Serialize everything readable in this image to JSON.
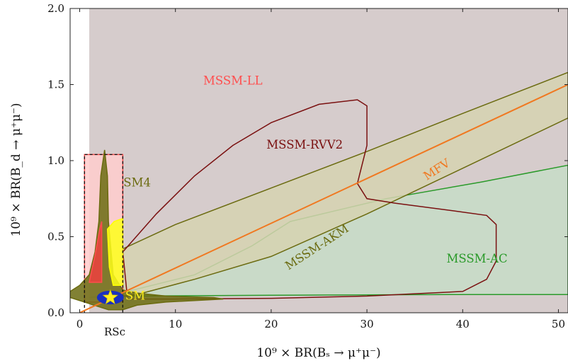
{
  "chart_data": {
    "type": "area",
    "xlabel": "10⁹ × BR(Bₛ → μ⁺μ⁻)",
    "ylabel": "10⁹ × BR(B_d → μ⁺μ⁻)",
    "xlim": [
      -1,
      51
    ],
    "ylim": [
      0,
      2.0
    ],
    "x_ticks": [
      0,
      10,
      20,
      30,
      40,
      50
    ],
    "y_ticks": [
      0.0,
      0.5,
      1.0,
      1.5,
      2.0
    ],
    "x_tick_labels": [
      "0",
      "10",
      "20",
      "30",
      "40",
      "50"
    ],
    "y_tick_labels": [
      "0.0",
      "0.5",
      "1.0",
      "1.5",
      "2.0"
    ],
    "grid": false,
    "regions": [
      {
        "label": "",
        "color": "#d6cccc",
        "polygon": [
          [
            1,
            0
          ],
          [
            51,
            0
          ],
          [
            51,
            2.0
          ],
          [
            1,
            2.0
          ]
        ]
      },
      {
        "label": "MSSM-AC",
        "color": "#2a9a2a",
        "fill": "#c7dcc7",
        "label_pos": [
          41.5,
          0.33
        ],
        "label_rotation": 0,
        "polygon": [
          [
            1,
            0.1
          ],
          [
            5,
            0.14
          ],
          [
            12,
            0.25
          ],
          [
            18,
            0.44
          ],
          [
            22,
            0.6
          ],
          [
            32,
            0.75
          ],
          [
            42,
            0.86
          ],
          [
            51,
            0.97
          ],
          [
            51,
            0.12
          ],
          [
            40,
            0.12
          ],
          [
            20,
            0.115
          ],
          [
            5,
            0.11
          ]
        ]
      },
      {
        "label": "MSSM-AKM",
        "color": "#6b6b10",
        "fill": "#d6d2b0",
        "label_pos": [
          25,
          0.41
        ],
        "label_rotation": -33,
        "polygon": [
          [
            4.5,
            0.42
          ],
          [
            10,
            0.58
          ],
          [
            20,
            0.82
          ],
          [
            30,
            1.06
          ],
          [
            40,
            1.31
          ],
          [
            51,
            1.58
          ],
          [
            51,
            1.28
          ],
          [
            40,
            0.95
          ],
          [
            30,
            0.65
          ],
          [
            20,
            0.37
          ],
          [
            12,
            0.22
          ],
          [
            6,
            0.12
          ],
          [
            4.5,
            0.11
          ]
        ]
      },
      {
        "label": "MSSM-RVV2",
        "color": "#7a1010",
        "fill": "none",
        "label_pos": [
          23.5,
          1.08
        ],
        "label_rotation": 0,
        "polygon": [
          [
            4.5,
            0.4
          ],
          [
            8,
            0.65
          ],
          [
            12,
            0.9
          ],
          [
            16,
            1.1
          ],
          [
            20,
            1.25
          ],
          [
            25,
            1.37
          ],
          [
            29,
            1.4
          ],
          [
            30,
            1.36
          ],
          [
            30,
            1.1
          ],
          [
            29,
            0.85
          ],
          [
            30,
            0.75
          ],
          [
            33,
            0.72
          ],
          [
            39,
            0.67
          ],
          [
            42.5,
            0.64
          ],
          [
            43.5,
            0.58
          ],
          [
            43.5,
            0.34
          ],
          [
            42.5,
            0.22
          ],
          [
            40,
            0.14
          ],
          [
            30,
            0.11
          ],
          [
            20,
            0.095
          ],
          [
            10,
            0.09
          ],
          [
            5,
            0.09
          ]
        ]
      },
      {
        "label": "MSSM-LL",
        "color": "#ff4d4d",
        "fill": "#ffcccc",
        "label_pos": [
          16,
          1.5
        ],
        "label_rotation": 0,
        "polygon": [
          [
            0.5,
            1.04
          ],
          [
            4.5,
            1.04
          ],
          [
            4.5,
            0.07
          ],
          [
            0.5,
            0.07
          ]
        ]
      },
      {
        "label": "SM4",
        "color": "#6b6b10",
        "fill": "#6b6b10",
        "label_pos": [
          6.0,
          0.83
        ],
        "label_rotation": 0,
        "polygon": [
          [
            2.6,
            1.07
          ],
          [
            2.2,
            0.9
          ],
          [
            2.0,
            0.6
          ],
          [
            1.6,
            0.4
          ],
          [
            1.0,
            0.25
          ],
          [
            0,
            0.18
          ],
          [
            -1,
            0.14
          ],
          [
            -1,
            0.1
          ],
          [
            0.5,
            0.07
          ],
          [
            1.5,
            0.05
          ],
          [
            3,
            0.02
          ],
          [
            4.5,
            0.02
          ],
          [
            6,
            0.05
          ],
          [
            9,
            0.07
          ],
          [
            15,
            0.09
          ],
          [
            14,
            0.1
          ],
          [
            9,
            0.11
          ],
          [
            6,
            0.13
          ],
          [
            4.5,
            0.15
          ],
          [
            3.5,
            0.25
          ],
          [
            3.0,
            0.6
          ],
          [
            2.9,
            0.9
          ]
        ]
      },
      {
        "label": "",
        "color": "#ff4d4d",
        "fill": "#ee4040",
        "polygon": [
          [
            1.0,
            0.2
          ],
          [
            1.6,
            0.38
          ],
          [
            2.1,
            0.55
          ],
          [
            2.3,
            0.6
          ],
          [
            2.3,
            0.2
          ]
        ]
      },
      {
        "label": "",
        "color": "#ffff00",
        "fill": "#ffff1a",
        "polygon": [
          [
            2.9,
            0.55
          ],
          [
            3.6,
            0.6
          ],
          [
            4.5,
            0.62
          ],
          [
            4.5,
            0.18
          ],
          [
            3.5,
            0.18
          ],
          [
            3.1,
            0.3
          ]
        ]
      }
    ],
    "series": [
      {
        "name": "MFV",
        "color": "#f07820",
        "x": [
          0,
          51
        ],
        "y": [
          0.0,
          1.5
        ],
        "label_pos": [
          37.5,
          0.92
        ],
        "label_rotation": -33
      }
    ],
    "points": [
      {
        "name": "SM",
        "label": "SM",
        "color": "#ffee20",
        "ellipse_color": "#1a30c0",
        "x": 3.2,
        "y": 0.1,
        "err_x": 1.4,
        "err_y": 0.045,
        "label_pos": [
          5.8,
          0.085
        ]
      }
    ],
    "annotations": [
      {
        "text": "RSc",
        "color": "#2a7ac0",
        "x": 3.5,
        "y_below_axis": true
      }
    ],
    "dashed_box": [
      [
        0.5,
        0
      ],
      [
        4.5,
        1.04
      ]
    ]
  }
}
